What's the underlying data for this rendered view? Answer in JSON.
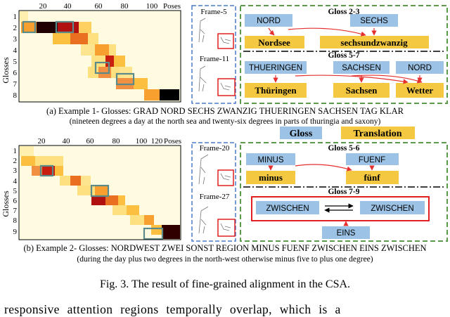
{
  "example1": {
    "heatmap": {
      "x_ticks": [
        "20",
        "40",
        "60",
        "80",
        "100"
      ],
      "x_label": "Poses",
      "y_ticks": [
        "1",
        "2",
        "3",
        "4",
        "5",
        "6",
        "7",
        "8"
      ],
      "y_label": "Glosses"
    },
    "frames": [
      "Frame-5",
      "Frame-11"
    ],
    "panels": [
      {
        "title": "Gloss 2-3",
        "glosses": [
          "NORD",
          "SECHS"
        ],
        "words": [
          "Nordsee",
          "sechsundzwanzig"
        ]
      },
      {
        "title": "Gloss 5-7",
        "glosses": [
          "THUERINGEN",
          "SACHSEN",
          "NORD"
        ],
        "words": [
          "Thüringen",
          "Sachsen",
          "Wetter"
        ]
      }
    ],
    "caption": "(a) Example 1- Glosses: GRAD NORD SECHS ZWANZIG THUERINGEN SACHSEN TAG KLAR",
    "translation": "(nineteen degrees a day at the north sea and twenty-six degrees in parts of thuringia and saxony)"
  },
  "legend": {
    "gloss": "Gloss",
    "translation": "Translation"
  },
  "example2": {
    "heatmap": {
      "x_ticks": [
        "20",
        "40",
        "60",
        "80",
        "100",
        "120"
      ],
      "x_label": "Poses",
      "y_ticks": [
        "1",
        "2",
        "3",
        "4",
        "5",
        "6",
        "7",
        "8",
        "9"
      ],
      "y_label": "Glosses"
    },
    "frames": [
      "Frame-20",
      "Frame-27"
    ],
    "panels": [
      {
        "title": "Gloss 5-6",
        "glosses": [
          "MINUS",
          "FUENF"
        ],
        "words": [
          "minus",
          "fünf"
        ]
      },
      {
        "title": "Gloss 7-9",
        "glosses": [
          "ZWISCHEN",
          "ZWISCHEN",
          "EINS"
        ],
        "words": []
      }
    ],
    "caption": "(b) Example 2- Glosses: NORDWEST ZWEI SONST REGION MINUS FUENF ZWISCHEN EINS ZWISCHEN",
    "translation": "(during the day plus two degrees in the north-west otherwise minus five to plus one degree)"
  },
  "figure_caption": "Fig. 3.  The result of fine-grained alignment in the CSA.",
  "body_text": "responsive attention regions temporally overlap, which is a"
}
